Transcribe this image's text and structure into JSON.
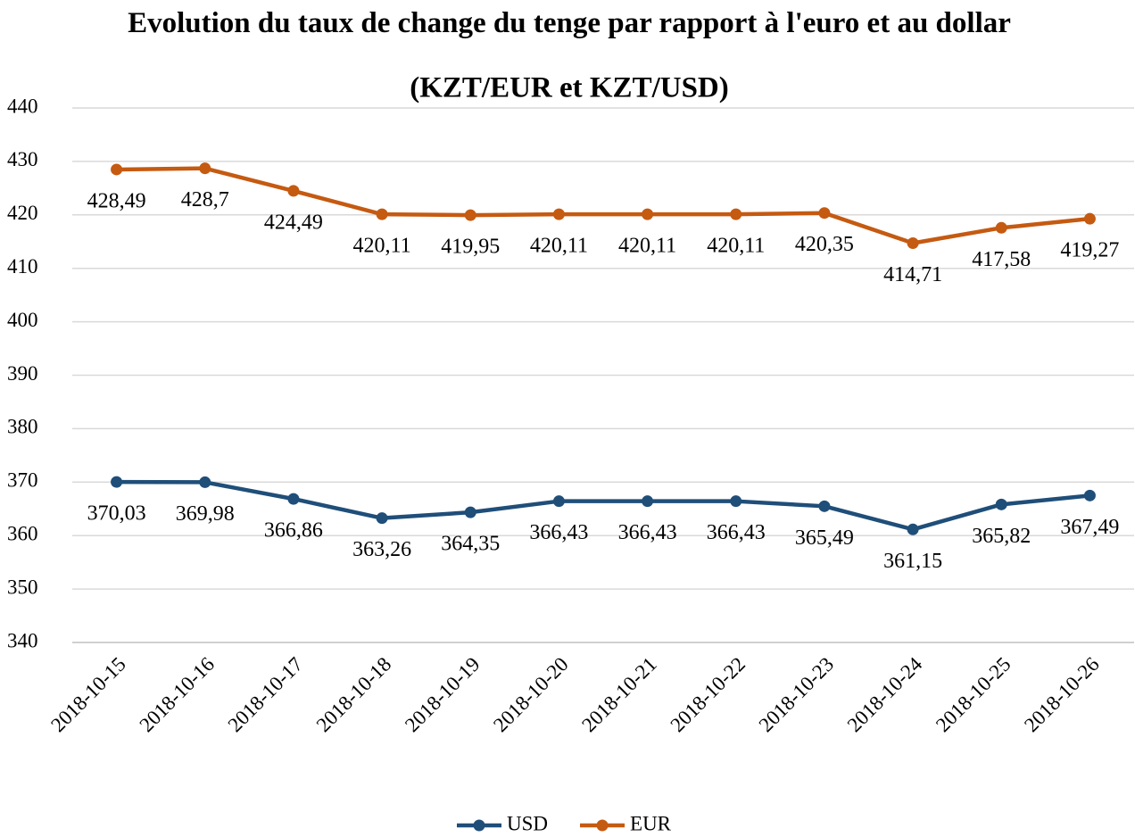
{
  "chart_data": {
    "type": "line",
    "title": "Evolution du taux de change du tenge par rapport à l'euro et au dollar",
    "subtitle": "(KZT/EUR et KZT/USD)",
    "categories": [
      "2018-10-15",
      "2018-10-16",
      "2018-10-17",
      "2018-10-18",
      "2018-10-19",
      "2018-10-20",
      "2018-10-21",
      "2018-10-22",
      "2018-10-23",
      "2018-10-24",
      "2018-10-25",
      "2018-10-26"
    ],
    "series": [
      {
        "name": "USD",
        "color": "#1f4e79",
        "values": [
          370.03,
          369.98,
          366.86,
          363.26,
          364.35,
          366.43,
          366.43,
          366.43,
          365.49,
          361.15,
          365.82,
          367.49
        ],
        "value_labels": [
          "370,03",
          "369,98",
          "366,86",
          "363,26",
          "364,35",
          "366,43",
          "366,43",
          "366,43",
          "365,49",
          "361,15",
          "365,82",
          "367,49"
        ]
      },
      {
        "name": "EUR",
        "color": "#c55a11",
        "values": [
          428.49,
          428.7,
          424.49,
          420.11,
          419.95,
          420.11,
          420.11,
          420.11,
          420.35,
          414.71,
          417.58,
          419.27
        ],
        "value_labels": [
          "428,49",
          "428,7",
          "424,49",
          "420,11",
          "419,95",
          "420,11",
          "420,11",
          "420,11",
          "420,35",
          "414,71",
          "417,58",
          "419,27"
        ]
      }
    ],
    "ylim": [
      340,
      440
    ],
    "yticks": [
      340,
      350,
      360,
      370,
      380,
      390,
      400,
      410,
      420,
      430,
      440
    ],
    "grid": true,
    "legend": "bottom"
  }
}
